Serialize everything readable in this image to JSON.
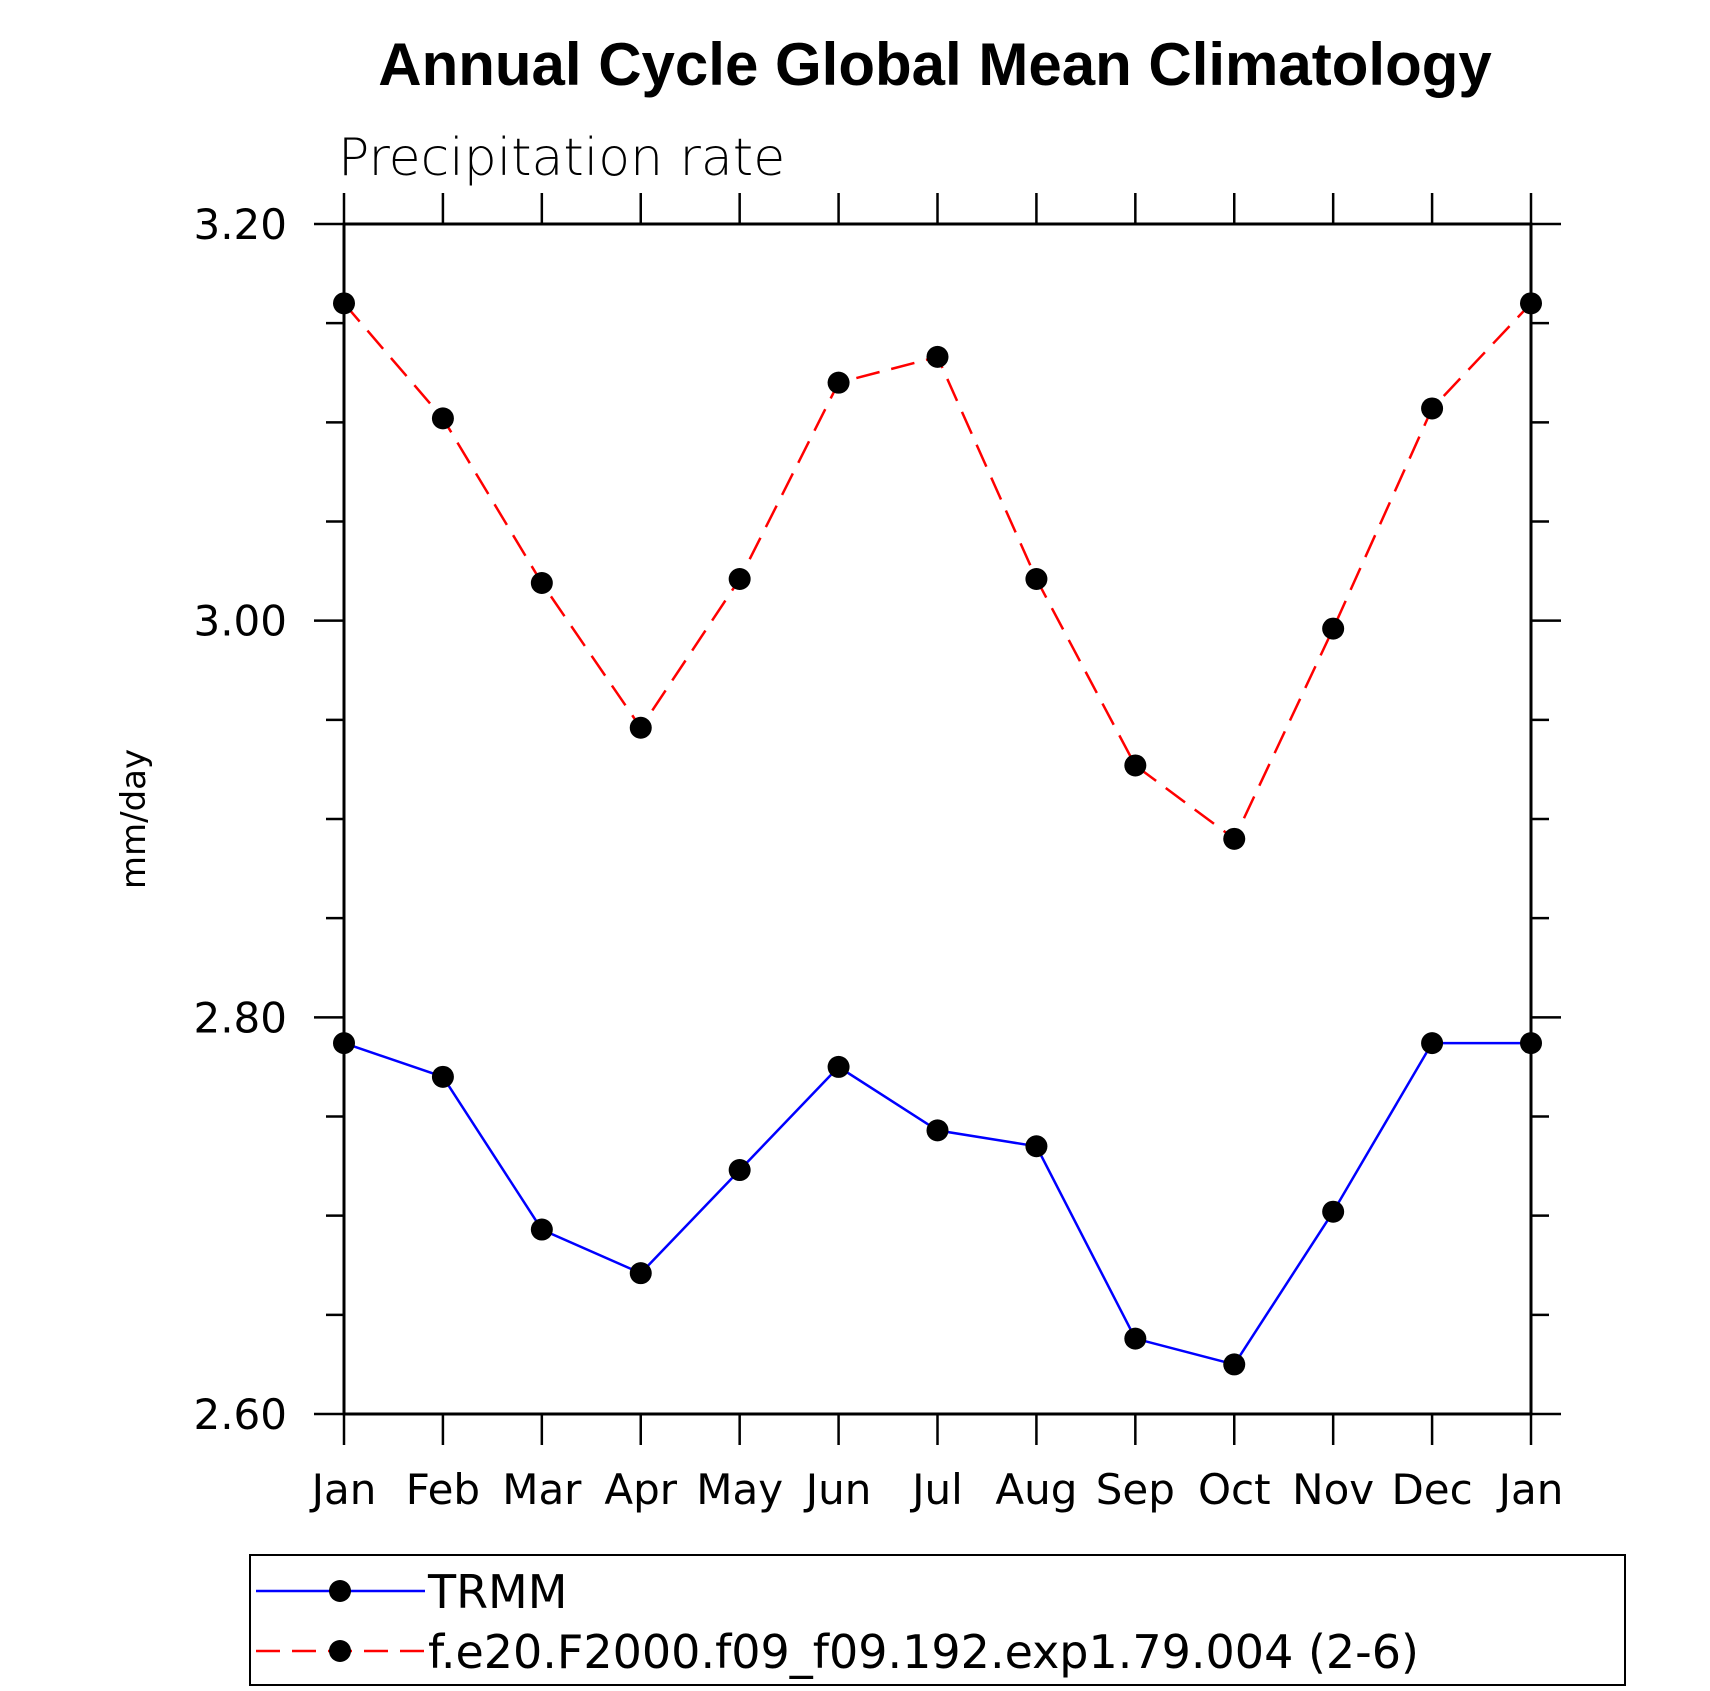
{
  "chart_data": {
    "type": "line",
    "title": "Annual Cycle Global Mean Climatology",
    "subtitle": "Precipitation rate",
    "xlabel": "",
    "ylabel": "mm/day",
    "categories": [
      "Jan",
      "Feb",
      "Mar",
      "Apr",
      "May",
      "Jun",
      "Jul",
      "Aug",
      "Sep",
      "Oct",
      "Nov",
      "Dec",
      "Jan"
    ],
    "ylim": [
      2.6,
      3.2
    ],
    "yticks": [
      2.6,
      2.8,
      3.0,
      3.2
    ],
    "ytick_labels": [
      "2.60",
      "2.80",
      "3.00",
      "3.20"
    ],
    "yminor_step": 0.05,
    "series": [
      {
        "name": "TRMM",
        "color": "#0000ff",
        "dash": "solid",
        "marker": "filled-circle",
        "values": [
          2.787,
          2.77,
          2.693,
          2.671,
          2.723,
          2.775,
          2.743,
          2.735,
          2.638,
          2.625,
          2.702,
          2.787,
          2.787
        ]
      },
      {
        "name": "f.e20.F2000.f09_f09.192.exp1.79.004 (2-6)",
        "color": "#ff0000",
        "dash": "dashed",
        "marker": "filled-circle",
        "values": [
          3.16,
          3.102,
          3.019,
          2.946,
          3.021,
          3.12,
          3.133,
          3.021,
          2.927,
          2.89,
          2.996,
          3.107,
          3.16
        ]
      }
    ],
    "legend_position": "bottom",
    "grid": false
  }
}
